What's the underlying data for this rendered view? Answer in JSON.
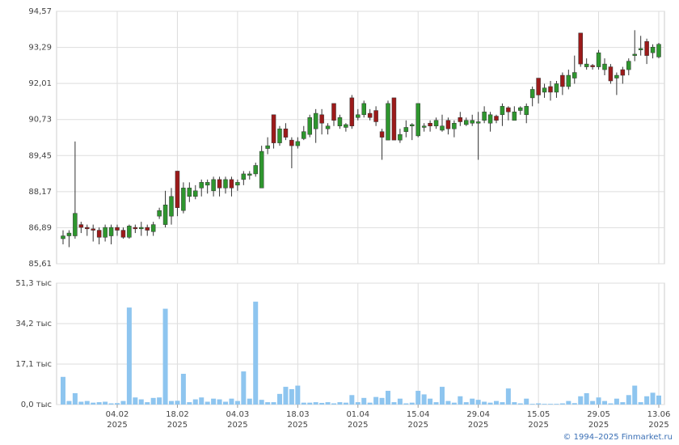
{
  "chart_data": {
    "type": "candlestick",
    "up_color": "#2e962e",
    "down_color": "#9c1a1a",
    "grid": true,
    "categories": [
      null,
      null,
      null,
      null,
      null,
      null,
      null,
      null,
      null,
      "04.02 2025",
      null,
      null,
      null,
      null,
      null,
      null,
      null,
      null,
      null,
      "18.02 2025",
      null,
      null,
      null,
      null,
      null,
      null,
      null,
      null,
      null,
      "04.03 2025",
      null,
      null,
      null,
      null,
      null,
      null,
      null,
      null,
      null,
      "18.03 2025",
      null,
      null,
      null,
      null,
      null,
      null,
      null,
      null,
      null,
      "01.04 2025",
      null,
      null,
      null,
      null,
      null,
      null,
      null,
      null,
      null,
      "15.04 2025",
      null,
      null,
      null,
      null,
      null,
      null,
      null,
      null,
      null,
      "29.04 2025",
      null,
      null,
      null,
      null,
      null,
      null,
      null,
      null,
      null,
      "15.05 2025",
      null,
      null,
      null,
      null,
      null,
      null,
      null,
      null,
      null,
      "29.05 2025",
      null,
      null,
      null,
      null,
      null,
      null,
      null,
      null,
      null,
      "13.06 2025"
    ],
    "open": [
      86.5,
      86.6,
      86.6,
      87.0,
      86.9,
      86.85,
      86.8,
      86.55,
      86.6,
      86.9,
      86.8,
      86.55,
      86.9,
      86.85,
      86.9,
      86.75,
      87.3,
      87.0,
      87.3,
      88.9,
      87.5,
      88.0,
      88.0,
      88.3,
      88.4,
      88.2,
      88.6,
      88.3,
      88.6,
      88.4,
      88.6,
      88.75,
      88.8,
      88.3,
      89.7,
      90.9,
      89.9,
      90.4,
      90.0,
      89.8,
      90.05,
      90.2,
      90.4,
      90.9,
      90.4,
      91.3,
      90.5,
      90.45,
      91.5,
      90.8,
      90.9,
      90.95,
      91.05,
      90.3,
      90.0,
      91.5,
      90.0,
      90.3,
      90.5,
      90.15,
      90.45,
      90.6,
      90.5,
      90.35,
      90.7,
      90.4,
      90.8,
      90.55,
      90.6,
      90.6,
      90.7,
      90.6,
      90.85,
      90.9,
      91.15,
      90.7,
      91.05,
      90.9,
      91.5,
      92.2,
      91.7,
      91.9,
      91.7,
      92.3,
      91.9,
      92.2,
      93.8,
      92.6,
      92.65,
      92.6,
      92.5,
      92.6,
      92.2,
      92.5,
      92.5,
      93.0,
      93.2,
      93.5,
      93.1,
      92.95
    ],
    "high": [
      86.8,
      86.8,
      89.95,
      87.1,
      87.0,
      87.0,
      86.9,
      87.0,
      87.0,
      87.0,
      86.9,
      87.0,
      87.0,
      87.1,
      87.0,
      87.1,
      87.6,
      88.2,
      88.3,
      88.9,
      88.5,
      88.5,
      88.4,
      88.6,
      88.6,
      88.7,
      88.7,
      88.7,
      88.7,
      88.6,
      88.9,
      88.9,
      89.2,
      89.8,
      90.1,
      90.9,
      90.5,
      90.6,
      90.1,
      90.1,
      90.5,
      90.9,
      91.1,
      91.1,
      90.6,
      91.3,
      90.9,
      90.6,
      91.6,
      91.1,
      91.4,
      91.1,
      91.2,
      90.4,
      91.4,
      91.5,
      90.4,
      90.7,
      90.6,
      91.3,
      90.6,
      90.7,
      90.8,
      90.9,
      90.8,
      90.7,
      91.0,
      90.8,
      90.9,
      91.0,
      91.2,
      91.0,
      90.9,
      91.3,
      91.2,
      91.2,
      91.2,
      91.3,
      91.9,
      92.2,
      92.0,
      92.1,
      92.1,
      92.4,
      92.5,
      93.0,
      93.8,
      92.9,
      92.7,
      93.2,
      92.9,
      92.7,
      92.4,
      92.6,
      92.9,
      93.9,
      93.7,
      93.6,
      93.4,
      93.45
    ],
    "low": [
      86.3,
      86.2,
      86.5,
      86.7,
      86.6,
      86.4,
      86.3,
      86.4,
      86.3,
      86.6,
      86.5,
      86.5,
      86.7,
      86.6,
      86.6,
      86.6,
      87.2,
      86.9,
      87.0,
      87.3,
      87.4,
      87.8,
      87.9,
      88.0,
      88.1,
      88.0,
      88.0,
      88.1,
      88.0,
      88.2,
      88.4,
      88.6,
      88.7,
      88.3,
      89.5,
      89.7,
      89.8,
      90.0,
      89.0,
      89.7,
      90.0,
      90.1,
      89.9,
      90.2,
      90.2,
      90.5,
      90.4,
      90.3,
      90.4,
      90.7,
      90.8,
      90.7,
      90.5,
      89.3,
      90.0,
      90.0,
      89.9,
      90.1,
      90.0,
      90.1,
      90.3,
      90.3,
      90.4,
      90.3,
      90.2,
      90.1,
      90.5,
      90.5,
      90.5,
      89.3,
      90.6,
      90.3,
      90.6,
      90.5,
      90.7,
      90.7,
      90.9,
      90.6,
      91.2,
      91.3,
      91.5,
      91.4,
      91.5,
      91.6,
      91.8,
      92.0,
      92.6,
      92.5,
      92.5,
      92.5,
      92.3,
      92.0,
      91.6,
      92.0,
      92.3,
      92.8,
      93.0,
      92.7,
      92.9,
      92.9
    ],
    "close": [
      86.6,
      86.7,
      87.4,
      86.9,
      86.85,
      86.8,
      86.55,
      86.9,
      86.9,
      86.8,
      86.55,
      86.95,
      86.85,
      86.9,
      86.8,
      87.0,
      87.5,
      87.7,
      88.0,
      87.6,
      88.3,
      88.3,
      88.2,
      88.5,
      88.5,
      88.6,
      88.3,
      88.6,
      88.3,
      88.5,
      88.8,
      88.8,
      89.1,
      89.6,
      89.8,
      89.9,
      90.4,
      90.1,
      89.8,
      89.95,
      90.3,
      90.8,
      90.95,
      90.6,
      90.5,
      90.7,
      90.8,
      90.55,
      90.5,
      90.9,
      91.3,
      90.8,
      90.65,
      90.1,
      91.3,
      90.0,
      90.2,
      90.45,
      90.55,
      91.3,
      90.5,
      90.5,
      90.7,
      90.5,
      90.4,
      90.6,
      90.65,
      90.7,
      90.7,
      90.65,
      91.0,
      90.9,
      90.7,
      91.2,
      91.0,
      91.0,
      91.15,
      91.2,
      91.8,
      91.6,
      91.85,
      91.7,
      92.0,
      91.9,
      92.3,
      92.4,
      92.7,
      92.7,
      92.6,
      93.1,
      92.7,
      92.1,
      92.3,
      92.3,
      92.8,
      93.05,
      93.25,
      93.0,
      93.3,
      93.4
    ],
    "ylim": [
      85.61,
      94.57
    ],
    "yticks": [
      {
        "value": 85.61,
        "label": "85,61"
      },
      {
        "value": 86.89,
        "label": "86,89"
      },
      {
        "value": 88.17,
        "label": "88,17"
      },
      {
        "value": 89.45,
        "label": "89,45"
      },
      {
        "value": 90.73,
        "label": "90,73"
      },
      {
        "value": 92.01,
        "label": "92,01"
      },
      {
        "value": 93.29,
        "label": "93,29"
      },
      {
        "value": 94.57,
        "label": "94,57"
      }
    ],
    "volume": {
      "color": "#8ec5ef",
      "values": [
        11.7,
        1.5,
        4.8,
        1.2,
        1.5,
        0.8,
        1.0,
        1.2,
        0.5,
        0.6,
        1.5,
        41.0,
        3.0,
        2.2,
        1.0,
        2.8,
        3.0,
        40.5,
        1.5,
        1.6,
        13.0,
        1.0,
        2.2,
        3.0,
        1.2,
        2.5,
        2.2,
        1.2,
        2.5,
        1.5,
        14.0,
        2.5,
        43.5,
        2.0,
        1.0,
        1.0,
        4.5,
        7.5,
        6.5,
        8.0,
        0.8,
        0.8,
        1.0,
        0.7,
        1.0,
        0.5,
        1.0,
        0.8,
        4.0,
        1.0,
        2.8,
        0.8,
        3.2,
        2.8,
        5.8,
        1.0,
        2.5,
        0.5,
        0.8,
        5.8,
        4.3,
        2.5,
        1.0,
        7.5,
        1.5,
        0.8,
        3.5,
        1.0,
        2.5,
        2.0,
        1.2,
        0.8,
        1.5,
        1.0,
        6.8,
        1.0,
        0.5,
        2.5,
        0.3,
        0.5,
        0.3,
        0.3,
        0.3,
        0.5,
        1.5,
        0.6,
        3.5,
        4.8,
        1.5,
        3.0,
        1.5,
        0.5,
        2.5,
        1.0,
        4.0,
        8.0,
        1.0,
        3.5,
        5.0,
        3.8
      ],
      "ylim": [
        0,
        51.3
      ],
      "yticks": [
        {
          "value": 0,
          "label": "0,0 тыс"
        },
        {
          "value": 17.1,
          "label": "17,1 тыс"
        },
        {
          "value": 34.2,
          "label": "34,2 тыс"
        },
        {
          "value": 51.3,
          "label": "51,3 тыс"
        }
      ]
    },
    "copyright": "© 1994–2025 Finmarket.ru"
  }
}
